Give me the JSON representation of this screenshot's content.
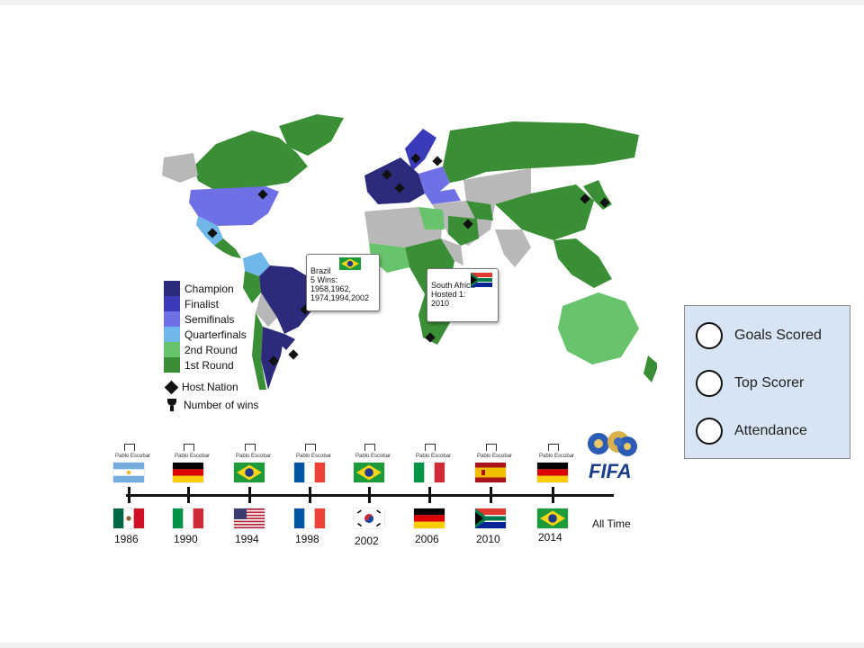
{
  "legend": {
    "items": [
      {
        "label": "Champion",
        "color": "#2c2a7a"
      },
      {
        "label": "Finalist",
        "color": "#3b3ab8"
      },
      {
        "label": "Semifinals",
        "color": "#6f6fe6"
      },
      {
        "label": "Quarterfinals",
        "color": "#6fb6ea"
      },
      {
        "label": "2nd Round",
        "color": "#67c46c"
      },
      {
        "label": "1st Round",
        "color": "#3a8e35"
      }
    ],
    "host_nation": "Host Nation",
    "number_of_wins": "Number of wins"
  },
  "map_colors": {
    "land_default": "#b8b8b8"
  },
  "callouts": {
    "brazil": "Brazil\n5 Wins:\n1958,1962,\n1974,1994,2002",
    "south_africa": "South Africa\nHosted 1:\n2010"
  },
  "timeline": {
    "winner_caption": "Pablo Escobar",
    "years": [
      {
        "year": "1986",
        "winner_flag": "argentina-flag",
        "host_flag": "mexico-flag"
      },
      {
        "year": "1990",
        "winner_flag": "germany-flag",
        "host_flag": "italy-flag"
      },
      {
        "year": "1994",
        "winner_flag": "brazil-flag",
        "host_flag": "usa-flag"
      },
      {
        "year": "1998",
        "winner_flag": "france-flag",
        "host_flag": "france-flag"
      },
      {
        "year": "2002",
        "winner_flag": "brazil-flag",
        "host_flag": "south-korea-flag"
      },
      {
        "year": "2006",
        "winner_flag": "italy-flag",
        "host_flag": "germany-flag"
      },
      {
        "year": "2010",
        "winner_flag": "spain-flag",
        "host_flag": "south-africa-flag"
      },
      {
        "year": "2014",
        "winner_flag": "germany-flag",
        "host_flag": "brazil-flag"
      }
    ],
    "all_time": "All Time",
    "logo_text": "FIFA"
  },
  "stats_panel": {
    "options": [
      {
        "label": "Goals Scored"
      },
      {
        "label": "Top Scorer"
      },
      {
        "label": "Attendance"
      }
    ]
  }
}
